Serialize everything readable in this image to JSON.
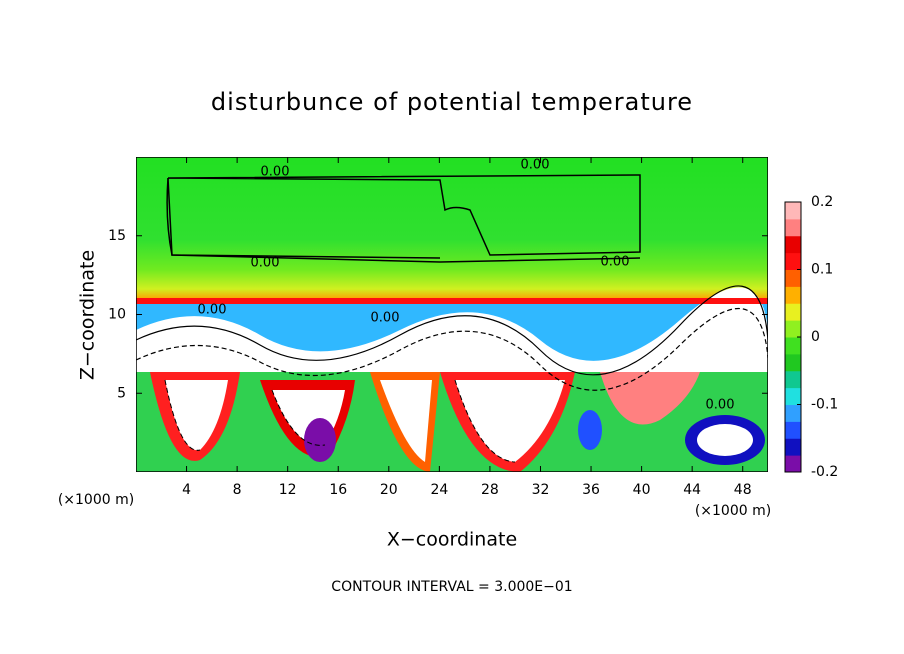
{
  "chart_data": {
    "type": "contour",
    "title": "disturbunce of potential temperature",
    "x_label": "X−coordinate",
    "y_label": "Z−coordinate",
    "x_unit": "(×1000 m)",
    "y_unit": "(×1000 m)",
    "footnote": "CONTOUR INTERVAL = 3.000E−01",
    "xlim": [
      0,
      50
    ],
    "xticks": [
      4,
      8,
      12,
      16,
      20,
      24,
      28,
      32,
      36,
      40,
      44,
      48
    ],
    "ylim": [
      0,
      20
    ],
    "yticks": [
      5,
      10,
      15
    ],
    "contour_labels": [
      "0.00",
      "0.00",
      "0.00",
      "0.00",
      "0.00",
      "0.00",
      "0.00"
    ],
    "colorbar": {
      "ylim": [
        -0.2,
        0.2
      ],
      "yticks": [
        -0.2,
        -0.1,
        0,
        0.1,
        0.2
      ],
      "colors": [
        "#7a0da8",
        "#1010c0",
        "#2050ff",
        "#30a0ff",
        "#20e0e0",
        "#10c890",
        "#20c820",
        "#40e020",
        "#90f020",
        "#e8f020",
        "#ffb000",
        "#ff6000",
        "#ff1010",
        "#e80000",
        "#ff8080",
        "#ffb8b8"
      ]
    }
  }
}
